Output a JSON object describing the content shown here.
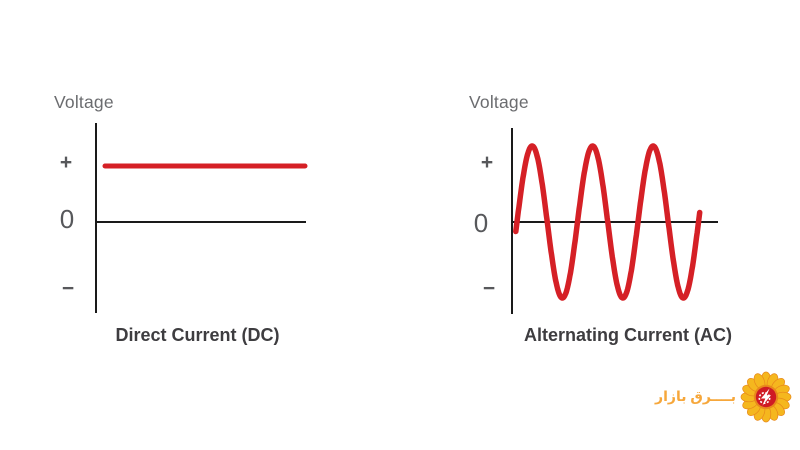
{
  "page": {
    "background": "#ffffff"
  },
  "colors": {
    "waveform_red": "#d52026",
    "axis_black": "#1a1a1a",
    "tick_gray": "#57585b",
    "voltage_gray": "#6b6c6f",
    "caption_dark": "#3e3d40",
    "logo_orange": "#f6a73b",
    "logo_petal_yellow": "#f5b71e",
    "logo_petal_edge": "#e8891c",
    "logo_center_red": "#cf1b24",
    "logo_bolt_white": "#ffffff"
  },
  "panels": {
    "dc": {
      "axis_title": "Voltage",
      "tick_plus": "+",
      "tick_zero": "0",
      "tick_minus": "−",
      "caption": "Direct Current (DC)"
    },
    "ac": {
      "axis_title": "Voltage",
      "tick_plus": "+",
      "tick_zero": "0",
      "tick_minus": "−",
      "caption": "Alternating Current (AC)"
    }
  },
  "logo": {
    "wordmark": "بــــرق بازار",
    "flower_icon": "sunflower-lightning-logo"
  },
  "chart_data": [
    {
      "id": "dc",
      "type": "line",
      "waveform": "constant",
      "title": "Direct Current (DC)",
      "ylabel": "Voltage",
      "y_ticks": [
        "+",
        "0",
        "−"
      ],
      "value": 1,
      "x_range": [
        0,
        1
      ],
      "ylim": [
        -1.35,
        1.85
      ],
      "grid": false,
      "legend": "none",
      "description": "Constant positive voltage: flat red line above the zero axis for all time"
    },
    {
      "id": "ac",
      "type": "line",
      "waveform": "sine",
      "title": "Alternating Current (AC)",
      "ylabel": "Voltage",
      "y_ticks": [
        "+",
        "0",
        "−"
      ],
      "amplitude": 1,
      "cycles": 3,
      "t_start": -0.02,
      "t_end": 3.02,
      "ylim": [
        -1.35,
        1.55
      ],
      "grid": false,
      "legend": "none",
      "description": "Sinusoidal voltage swinging symmetrically between + and − for three full cycles"
    }
  ]
}
